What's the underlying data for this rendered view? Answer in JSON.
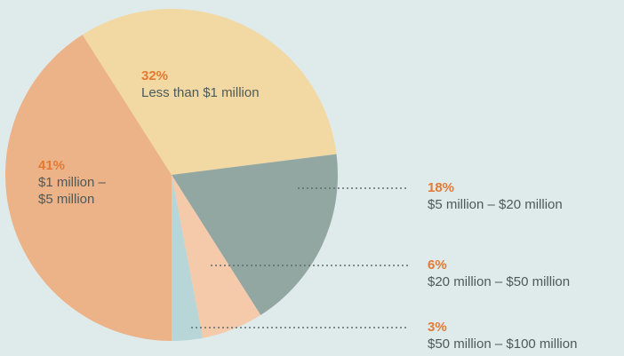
{
  "chart_data": {
    "type": "pie",
    "categories": [
      "$1 million – $5 million",
      "Less than $1 million",
      "$5 million – $20 million",
      "$20 million – $50 million",
      "$50 million – $100 million"
    ],
    "values": [
      41,
      32,
      18,
      6,
      3
    ],
    "value_labels": [
      "41%",
      "32%",
      "18%",
      "6%",
      "3%"
    ],
    "colors": [
      "#ecb389",
      "#f2d8a2",
      "#93a7a2",
      "#f5caab",
      "#b8d6d7"
    ]
  }
}
